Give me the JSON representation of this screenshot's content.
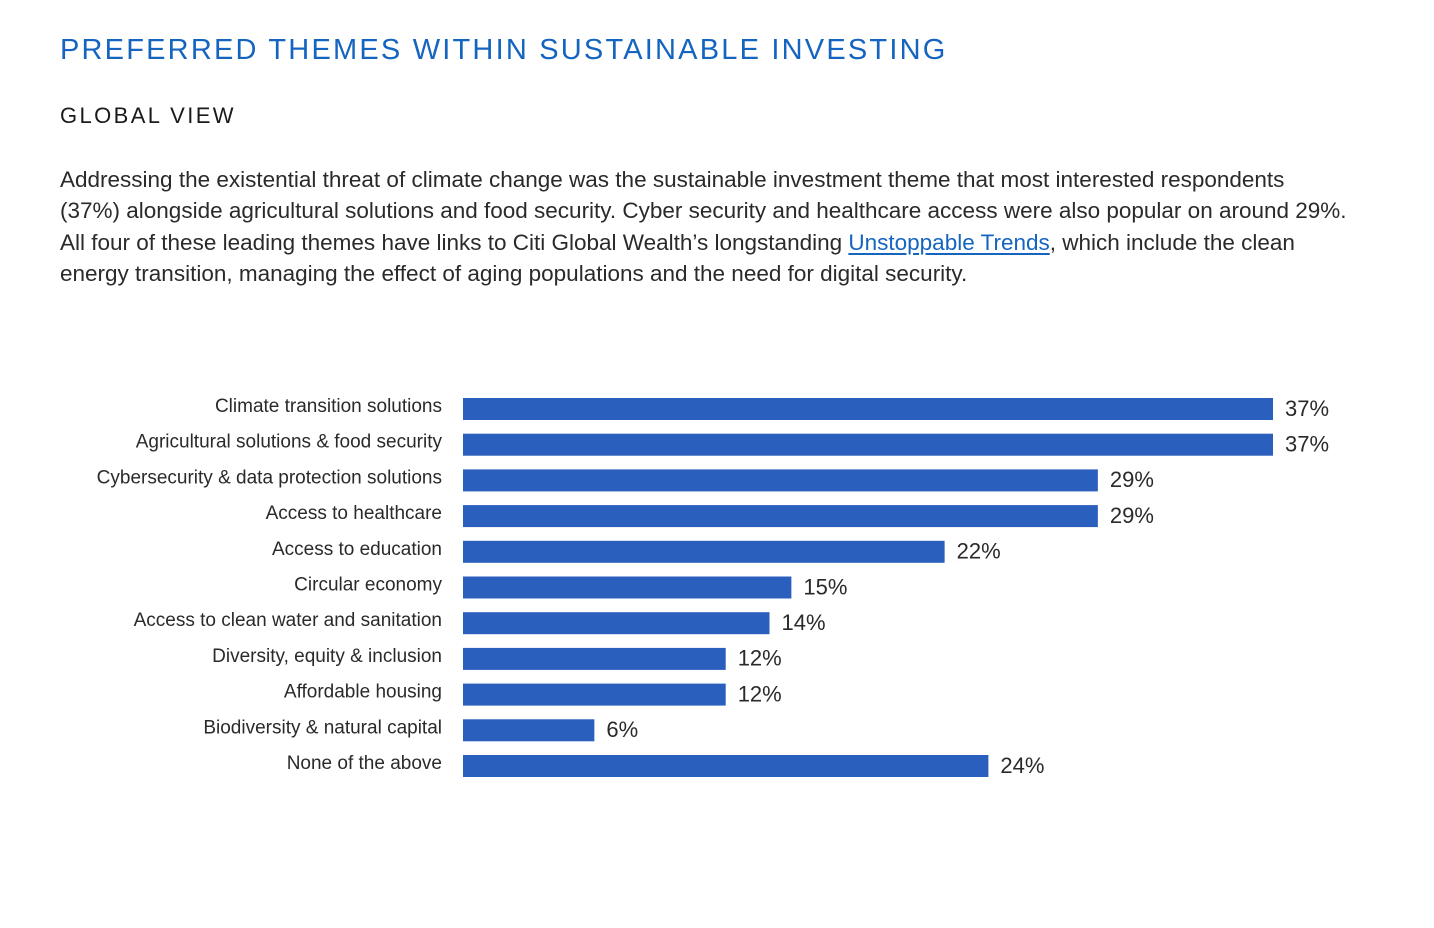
{
  "header": {
    "title": "PREFERRED THEMES WITHIN SUSTAINABLE INVESTING",
    "subtitle": "GLOBAL VIEW"
  },
  "intro": {
    "text_before_link": "Addressing the existential threat of climate change was the sustainable investment theme that most interested respondents (37%) alongside agricultural solutions and food security. Cyber security and healthcare access were also popular on around 29%. All four of these leading themes have links to Citi Global Wealth’s longstanding ",
    "link_text": "Unstoppable Trends",
    "text_after_link": ", which include the clean energy transition, managing the effect of aging populations and the need for digital security."
  },
  "colors": {
    "title": "#1565c0",
    "bar": "#2b5fbd",
    "link": "#1565c0",
    "text": "#2a2a2a"
  },
  "chart_data": {
    "type": "bar",
    "orientation": "horizontal",
    "categories": [
      "Climate transition solutions",
      "Agricultural solutions & food security",
      "Cybersecurity & data protection solutions",
      "Access to healthcare",
      "Access to education",
      "Circular economy",
      "Access to clean water and sanitation",
      "Diversity, equity & inclusion",
      "Affordable housing",
      "Biodiversity & natural capital",
      "None of the above"
    ],
    "values": [
      37,
      37,
      29,
      29,
      22,
      15,
      14,
      12,
      12,
      6,
      24
    ],
    "value_labels": [
      "37%",
      "37%",
      "29%",
      "29%",
      "22%",
      "15%",
      "14%",
      "12%",
      "12%",
      "6%",
      "24%"
    ],
    "unit": "%",
    "xlim": [
      0,
      37
    ],
    "grid": false,
    "legend": "none"
  }
}
